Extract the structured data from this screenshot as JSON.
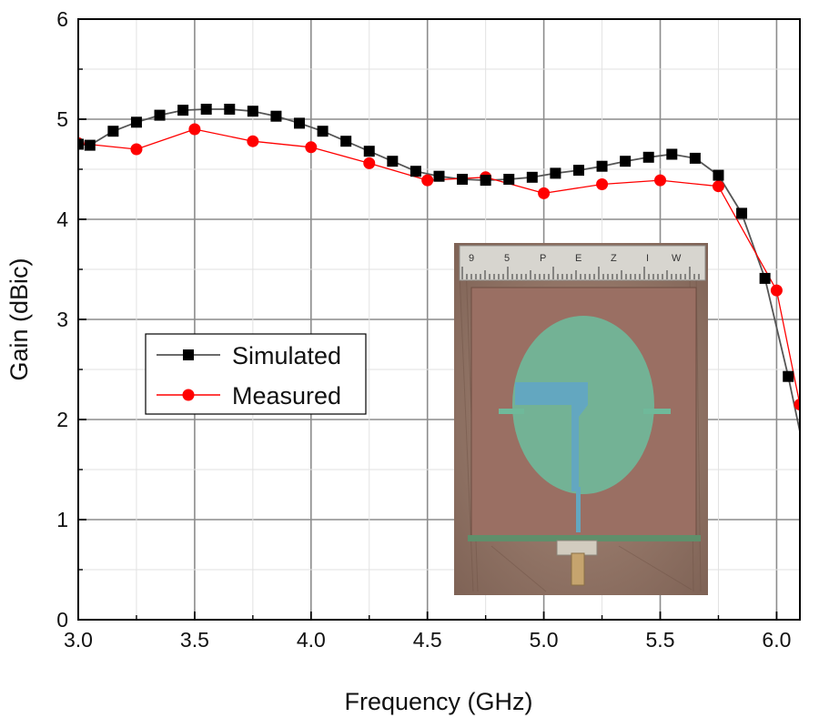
{
  "chart_data": {
    "type": "line",
    "title": "",
    "xlabel": "Frequency (GHz)",
    "ylabel": "Gain (dBic)",
    "xlim": [
      3.0,
      6.1
    ],
    "ylim": [
      0,
      6
    ],
    "x_ticks": [
      "3.0",
      "3.5",
      "4.0",
      "4.5",
      "5.0",
      "5.5",
      "6.0"
    ],
    "y_ticks": [
      "0",
      "1",
      "2",
      "3",
      "4",
      "5",
      "6"
    ],
    "grid": true,
    "legend_position": "center-left",
    "series": [
      {
        "name": "Simulated",
        "color": "#000000",
        "line_color": "#555555",
        "marker": "square",
        "x": [
          3.0,
          3.05,
          3.15,
          3.25,
          3.35,
          3.45,
          3.55,
          3.65,
          3.75,
          3.85,
          3.95,
          4.05,
          4.15,
          4.25,
          4.35,
          4.45,
          4.55,
          4.65,
          4.75,
          4.85,
          4.95,
          5.05,
          5.15,
          5.25,
          5.35,
          5.45,
          5.55,
          5.65,
          5.75,
          5.85,
          5.95,
          6.05
        ],
        "y": [
          4.75,
          4.74,
          4.88,
          4.97,
          5.04,
          5.09,
          5.1,
          5.1,
          5.08,
          5.03,
          4.96,
          4.88,
          4.78,
          4.68,
          4.58,
          4.48,
          4.43,
          4.4,
          4.39,
          4.4,
          4.42,
          4.46,
          4.49,
          4.53,
          4.58,
          4.62,
          4.65,
          4.61,
          4.44,
          4.06,
          3.41,
          2.43
        ],
        "curve_end": [
          6.1,
          1.88
        ]
      },
      {
        "name": "Measured",
        "color": "#ff0000",
        "line_color": "#ff0000",
        "marker": "circle",
        "x": [
          3.0,
          3.25,
          3.5,
          3.75,
          4.0,
          4.25,
          4.5,
          4.75,
          5.0,
          5.25,
          5.5,
          5.75,
          6.0,
          6.1
        ],
        "y": [
          4.76,
          4.7,
          4.9,
          4.78,
          4.72,
          4.56,
          4.39,
          4.42,
          4.26,
          4.35,
          4.39,
          4.33,
          3.29,
          2.15
        ]
      }
    ]
  },
  "inset": {
    "ruler_marks": [
      "9",
      "5",
      "P",
      "E",
      "Z",
      "I",
      "W"
    ]
  }
}
